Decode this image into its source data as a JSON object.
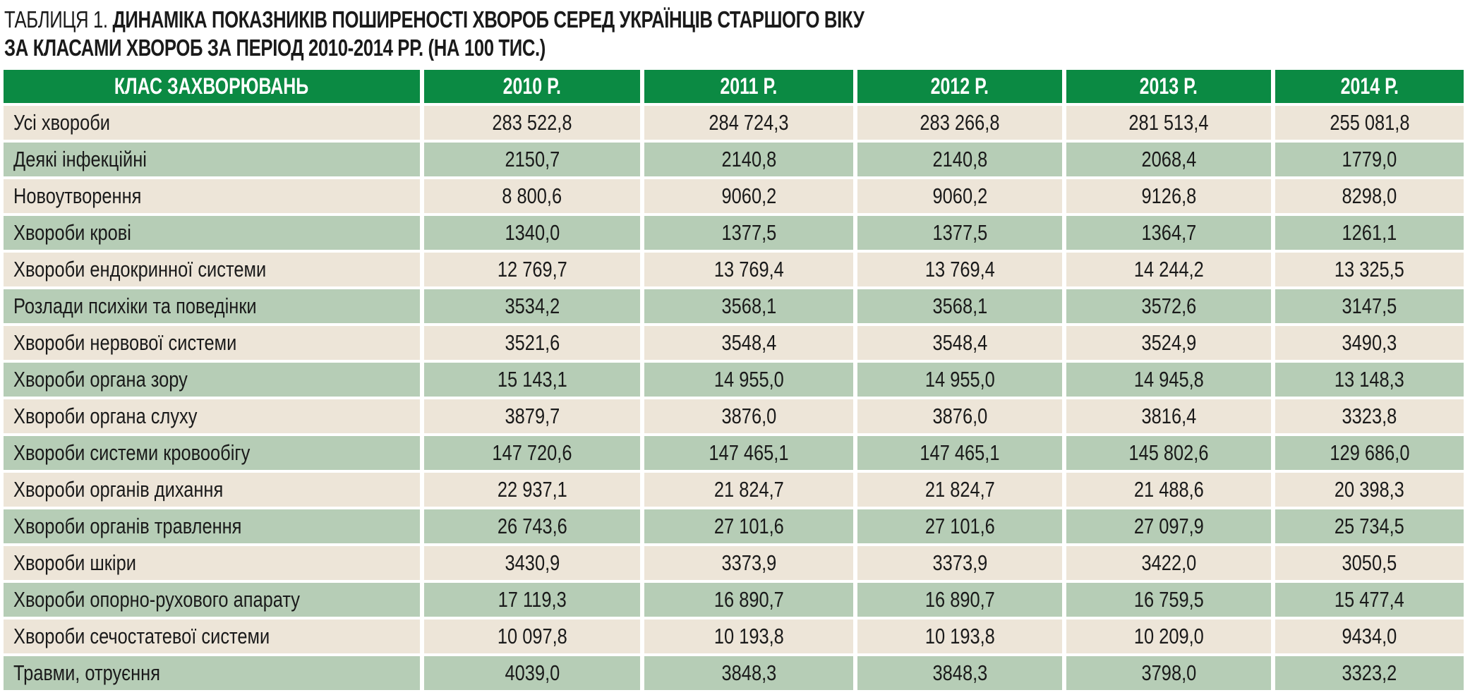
{
  "title": {
    "prefix": "ТАБЛИЦЯ 1.",
    "line1": "ДИНАМІКА ПОКАЗНИКІВ ПОШИРЕНОСТІ ХВОРОБ СЕРЕД УКРАЇНЦІВ СТАРШОГО ВІКУ",
    "line2": "ЗА КЛАСАМИ ХВОРОБ ЗА ПЕРІОД 2010-2014 РР. (НА 100 ТИС.)"
  },
  "colors": {
    "header_bg": "#0b8a43",
    "header_text": "#ffffff",
    "row_light": "#ede5d8",
    "row_green": "#b6cdb6"
  },
  "table": {
    "headers": [
      "КЛАС ЗАХВОРЮВАНЬ",
      "2010 Р.",
      "2011 Р.",
      "2012 Р.",
      "2013 Р.",
      "2014 Р."
    ],
    "rows": [
      [
        "Усі хвороби",
        "283 522,8",
        "284 724,3",
        "283 266,8",
        "281 513,4",
        "255 081,8"
      ],
      [
        "Деякі інфекційні",
        "2150,7",
        "2140,8",
        "2140,8",
        "2068,4",
        "1779,0"
      ],
      [
        "Новоутворення",
        "8 800,6",
        "9060,2",
        "9060,2",
        "9126,8",
        "8298,0"
      ],
      [
        "Хвороби крові",
        "1340,0",
        "1377,5",
        "1377,5",
        "1364,7",
        "1261,1"
      ],
      [
        "Хвороби ендокринної системи",
        "12 769,7",
        "13 769,4",
        "13 769,4",
        "14 244,2",
        "13 325,5"
      ],
      [
        "Розлади психіки та поведінки",
        "3534,2",
        "3568,1",
        "3568,1",
        "3572,6",
        "3147,5"
      ],
      [
        "Хвороби нервової системи",
        "3521,6",
        "3548,4",
        "3548,4",
        "3524,9",
        "3490,3"
      ],
      [
        "Хвороби органа зору",
        "15 143,1",
        "14 955,0",
        "14 955,0",
        "14 945,8",
        "13 148,3"
      ],
      [
        "Хвороби органа слуху",
        "3879,7",
        "3876,0",
        "3876,0",
        "3816,4",
        "3323,8"
      ],
      [
        "Хвороби системи кровообігу",
        "147 720,6",
        "147 465,1",
        "147 465,1",
        "145 802,6",
        "129 686,0"
      ],
      [
        "Хвороби органів дихання",
        "22 937,1",
        "21 824,7",
        "21 824,7",
        "21 488,6",
        "20 398,3"
      ],
      [
        "Хвороби органів травлення",
        "26 743,6",
        "27 101,6",
        "27 101,6",
        "27 097,9",
        "25 734,5"
      ],
      [
        "Хвороби шкіри",
        "3430,9",
        "3373,9",
        "3373,9",
        "3422,0",
        "3050,5"
      ],
      [
        "Хвороби опорно-рухового апарату",
        "17 119,3",
        "16 890,7",
        "16 890,7",
        "16 759,5",
        "15 477,4"
      ],
      [
        "Хвороби сечостатевої системи",
        "10 097,8",
        "10 193,8",
        "10 193,8",
        "10 209,0",
        "9434,0"
      ],
      [
        "Травми, отруєння",
        "4039,0",
        "3848,3",
        "3848,3",
        "3798,0",
        "3323,2"
      ]
    ]
  }
}
